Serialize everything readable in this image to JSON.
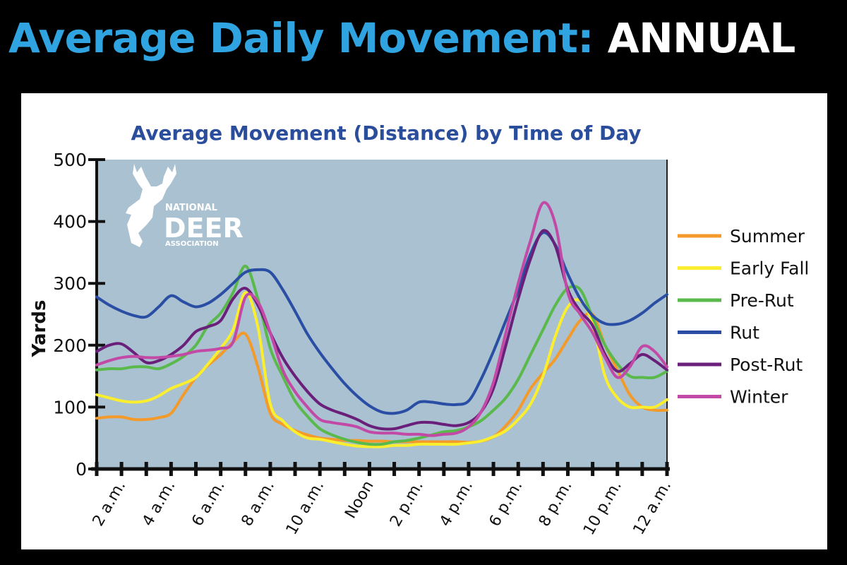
{
  "headline": {
    "part1": "Average Daily Movement: ",
    "part2": "ANNUAL"
  },
  "colors": {
    "headline_blue": "#2fa4e0",
    "headline_white": "#ffffff",
    "plot_bg": "#a9c1d0",
    "chart_title": "#2a4e9c"
  },
  "logo": {
    "icon": "deer-head-icon",
    "line1": "NATIONAL",
    "line2": "DEER",
    "line3": "ASSOCIATION"
  },
  "chart_data": {
    "type": "line",
    "title": "Average  Movement (Distance) by Time of Day",
    "xlabel": "",
    "ylabel": "Yards",
    "ylim": [
      0,
      500
    ],
    "yticks": [
      0,
      100,
      200,
      300,
      400,
      500
    ],
    "xlim": [
      1,
      24
    ],
    "xticks": [
      {
        "x": 2,
        "label": "2 a.m."
      },
      {
        "x": 4,
        "label": "4 a.m."
      },
      {
        "x": 6,
        "label": "6 a.m."
      },
      {
        "x": 8,
        "label": "8 a.m."
      },
      {
        "x": 10,
        "label": "10 a.m."
      },
      {
        "x": 12,
        "label": "Noon"
      },
      {
        "x": 14,
        "label": "2 p.m."
      },
      {
        "x": 16,
        "label": "4 p.m."
      },
      {
        "x": 18,
        "label": "6 p.m."
      },
      {
        "x": 20,
        "label": "8 p.m."
      },
      {
        "x": 22,
        "label": "10 p.m."
      },
      {
        "x": 24,
        "label": "12 a.m."
      }
    ],
    "grid": false,
    "legend": "right",
    "x": [
      1,
      1.5,
      2,
      2.5,
      3,
      3.5,
      4,
      4.5,
      5,
      5.5,
      6,
      6.5,
      7,
      7.5,
      8,
      8.5,
      9,
      9.5,
      10,
      10.5,
      11,
      11.5,
      12,
      12.5,
      13,
      13.5,
      14,
      14.5,
      15,
      15.5,
      16,
      16.5,
      17,
      17.5,
      18,
      18.5,
      19,
      19.5,
      20,
      20.5,
      21,
      21.5,
      22,
      22.5,
      23,
      23.5,
      24
    ],
    "series": [
      {
        "name": "Summer",
        "color": "#f39a2b",
        "values": [
          82,
          84,
          84,
          80,
          80,
          83,
          90,
          120,
          148,
          168,
          185,
          205,
          218,
          165,
          90,
          72,
          62,
          55,
          50,
          48,
          46,
          46,
          45,
          45,
          44,
          44,
          44,
          44,
          44,
          44,
          43,
          45,
          52,
          70,
          95,
          130,
          155,
          178,
          210,
          240,
          250,
          200,
          160,
          120,
          100,
          95,
          95
        ]
      },
      {
        "name": "Early Fall",
        "color": "#fbee2e",
        "values": [
          120,
          115,
          110,
          108,
          110,
          118,
          130,
          138,
          148,
          170,
          195,
          225,
          285,
          230,
          105,
          78,
          60,
          50,
          48,
          44,
          40,
          37,
          36,
          36,
          38,
          38,
          40,
          40,
          40,
          40,
          42,
          45,
          52,
          62,
          80,
          105,
          150,
          215,
          262,
          272,
          235,
          150,
          115,
          100,
          100,
          100,
          112
        ]
      },
      {
        "name": "Pre-Rut",
        "color": "#5ab94b",
        "values": [
          160,
          162,
          162,
          165,
          165,
          162,
          170,
          182,
          200,
          232,
          252,
          285,
          328,
          275,
          195,
          150,
          110,
          85,
          65,
          55,
          48,
          43,
          40,
          40,
          44,
          46,
          50,
          55,
          60,
          62,
          68,
          78,
          95,
          115,
          145,
          185,
          225,
          265,
          292,
          290,
          245,
          200,
          170,
          150,
          148,
          148,
          158
        ]
      },
      {
        "name": "Rut",
        "color": "#2b4ea5",
        "values": [
          278,
          265,
          255,
          248,
          246,
          262,
          280,
          270,
          262,
          268,
          282,
          300,
          318,
          322,
          318,
          290,
          255,
          218,
          188,
          162,
          138,
          118,
          102,
          92,
          90,
          95,
          108,
          108,
          105,
          104,
          110,
          145,
          190,
          240,
          290,
          348,
          382,
          362,
          315,
          275,
          248,
          235,
          234,
          240,
          252,
          268,
          282
        ]
      },
      {
        "name": "Post-Rut",
        "color": "#6a1f7a",
        "values": [
          190,
          200,
          202,
          188,
          172,
          175,
          185,
          200,
          222,
          230,
          240,
          275,
          292,
          265,
          220,
          180,
          150,
          125,
          105,
          95,
          88,
          80,
          70,
          65,
          65,
          70,
          75,
          75,
          72,
          70,
          75,
          92,
          130,
          200,
          275,
          340,
          385,
          360,
          290,
          255,
          232,
          185,
          158,
          170,
          185,
          175,
          160
        ]
      },
      {
        "name": "Winter",
        "color": "#c24aa6",
        "values": [
          168,
          175,
          180,
          182,
          180,
          180,
          182,
          185,
          190,
          192,
          195,
          205,
          278,
          270,
          220,
          160,
          125,
          100,
          80,
          75,
          72,
          68,
          60,
          58,
          58,
          56,
          56,
          54,
          56,
          58,
          68,
          92,
          140,
          220,
          300,
          370,
          430,
          395,
          285,
          250,
          220,
          180,
          148,
          165,
          198,
          190,
          165
        ]
      }
    ]
  }
}
